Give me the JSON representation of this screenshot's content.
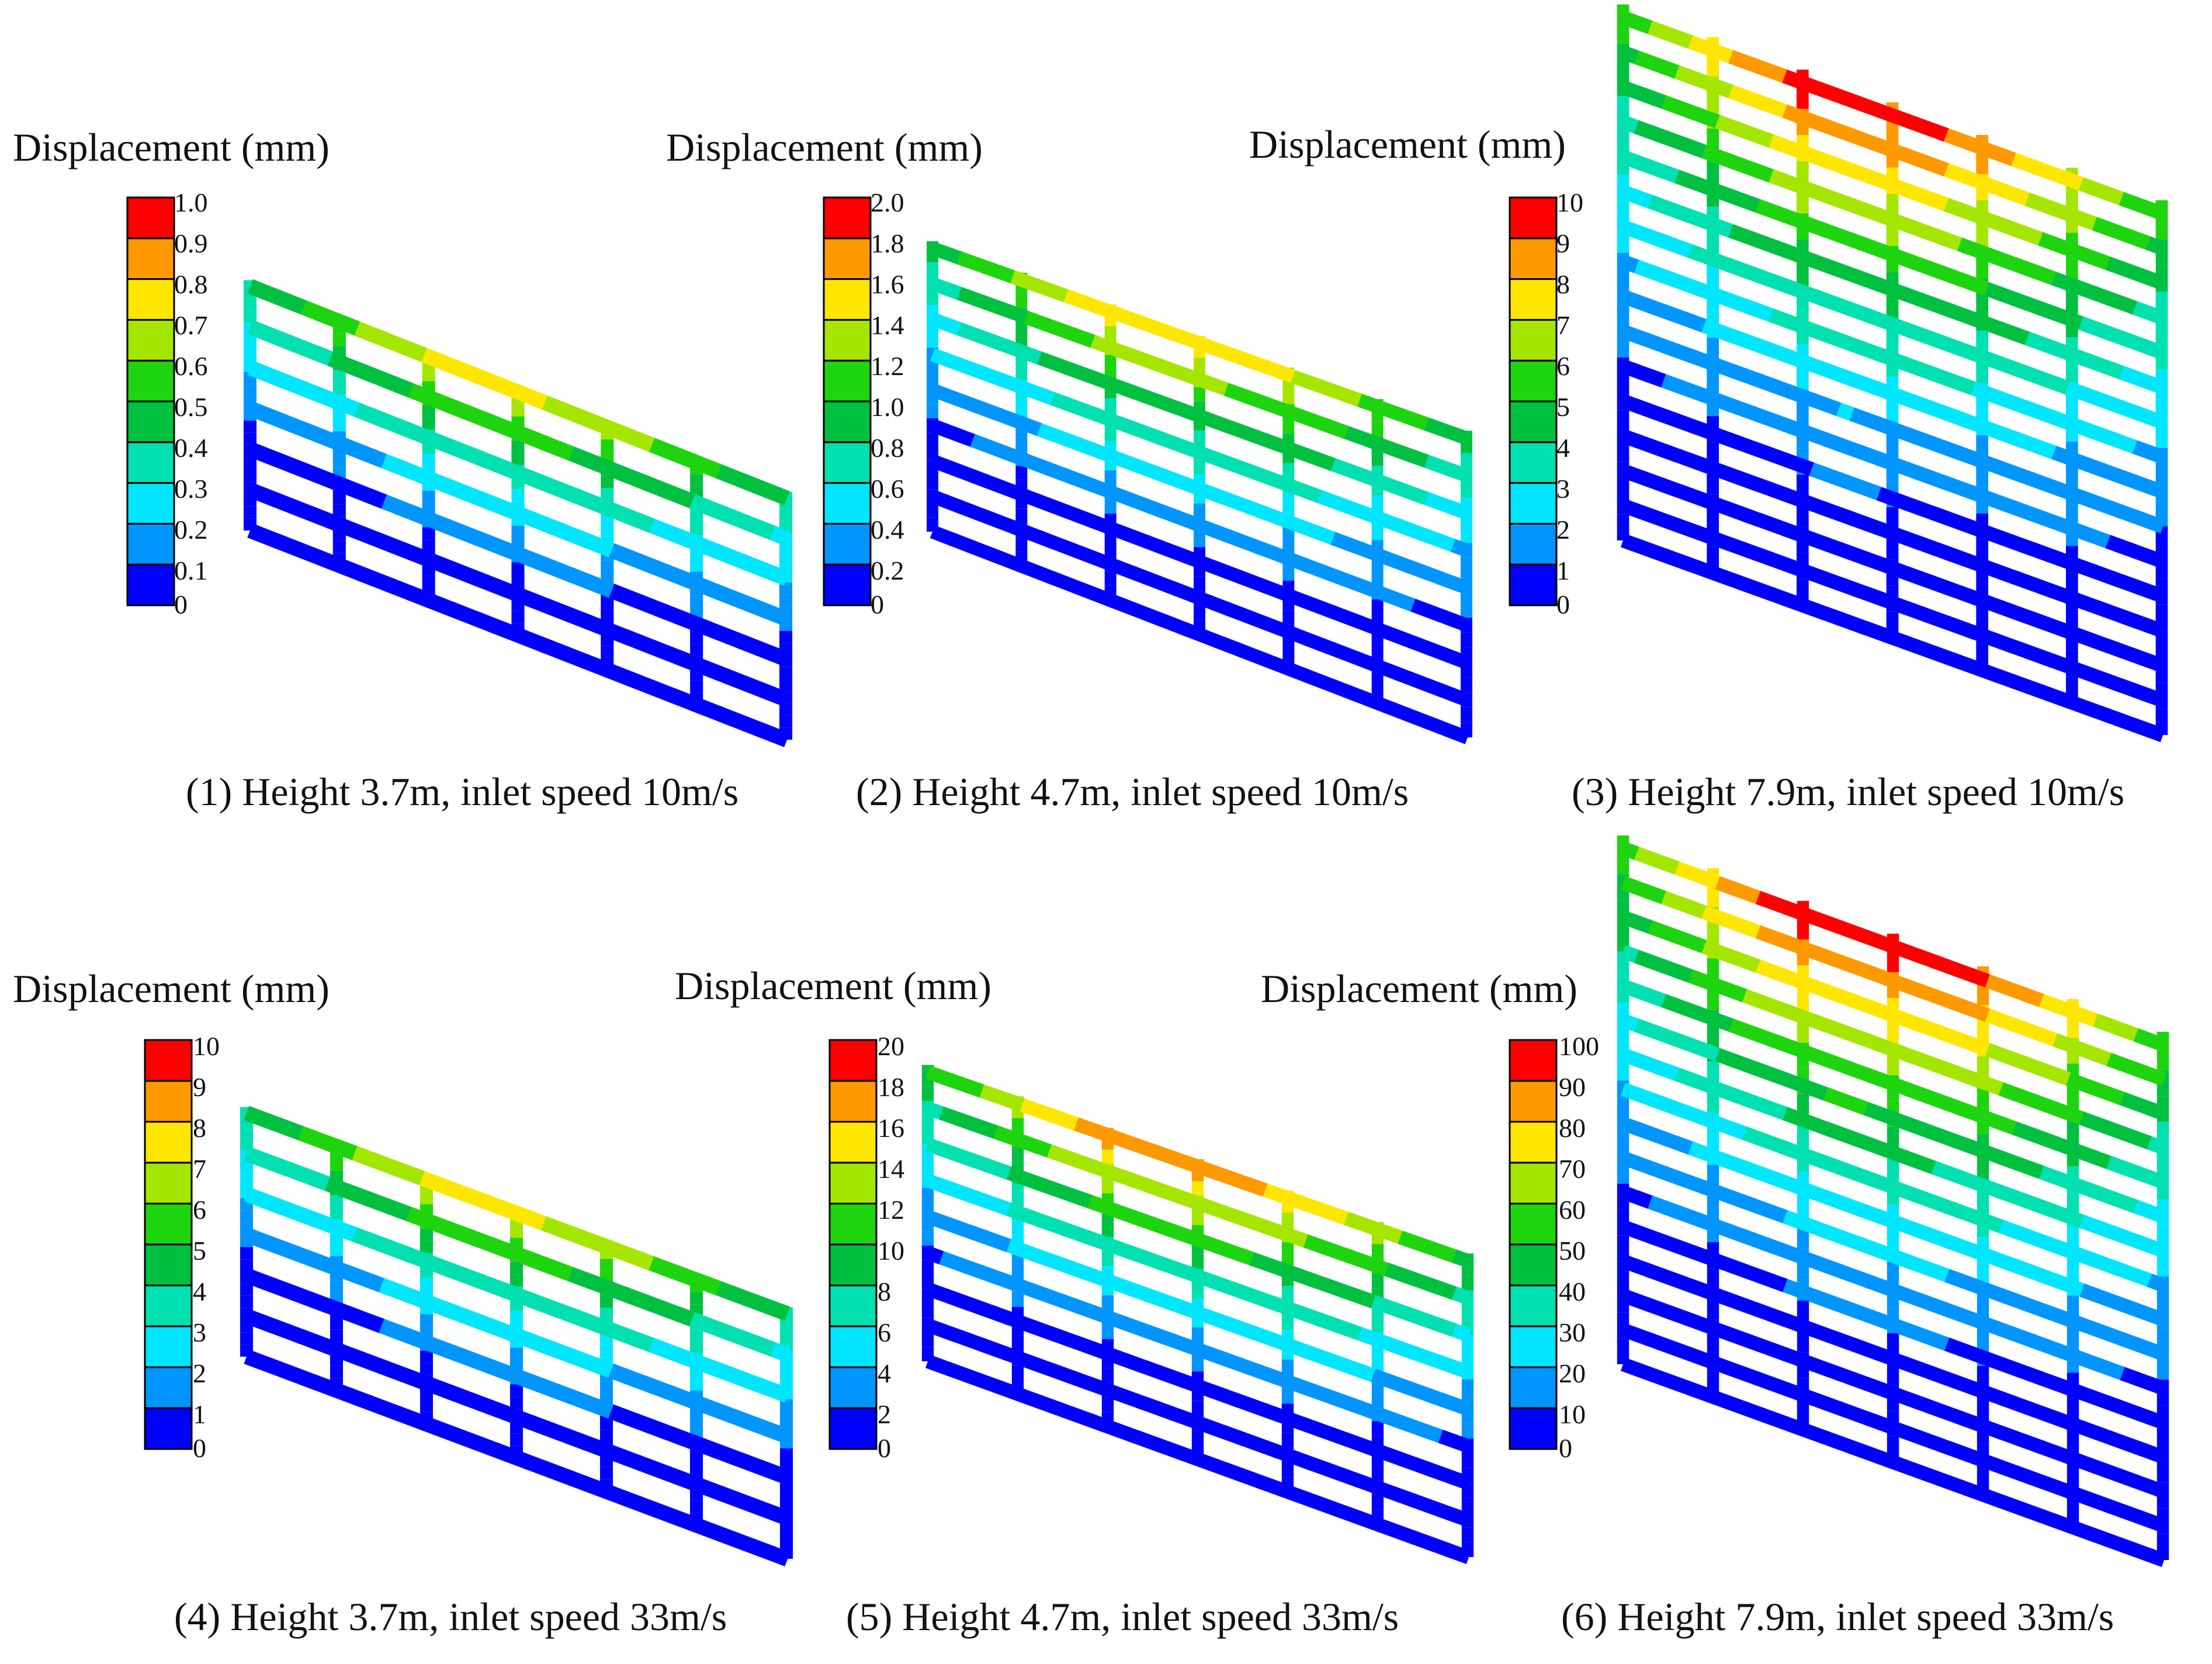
{
  "figure": {
    "colormap": [
      "#0000ff",
      "#0095ff",
      "#00e6ff",
      "#00e0b0",
      "#00c040",
      "#1ed40e",
      "#a4e600",
      "#ffe600",
      "#ff9900",
      "#ff0000"
    ],
    "frame_color": "#000000",
    "panels": [
      {
        "id": 1,
        "legend_title": "Displacement (mm)",
        "legend_ticks": [
          "0",
          "0.1",
          "0.2",
          "0.3",
          "0.4",
          "0.5",
          "0.6",
          "0.7",
          "0.8",
          "0.9",
          "1.0"
        ],
        "legend_max": 1.0,
        "caption": "(1) Height 3.7m, inlet speed 10m/s",
        "height_m": 3.7,
        "inlet_speed_ms": 10,
        "rails": 7,
        "posts": 7,
        "peak_fraction": 0.72
      },
      {
        "id": 2,
        "legend_title": "Displacement (mm)",
        "legend_ticks": [
          "0",
          "0.2",
          "0.4",
          "0.6",
          "0.8",
          "1.0",
          "1.2",
          "1.4",
          "1.6",
          "1.8",
          "2.0"
        ],
        "legend_max": 2.0,
        "caption": "(2) Height 4.7m, inlet speed 10m/s",
        "height_m": 4.7,
        "inlet_speed_ms": 10,
        "rails": 9,
        "posts": 7,
        "peak_fraction": 0.78
      },
      {
        "id": 3,
        "legend_title": "Displacement (mm)",
        "legend_ticks": [
          "0",
          "1",
          "2",
          "3",
          "4",
          "5",
          "6",
          "7",
          "8",
          "9",
          "10"
        ],
        "legend_max": 10,
        "caption": "(3) Height 7.9m, inlet speed 10m/s",
        "height_m": 7.9,
        "inlet_speed_ms": 10,
        "rails": 16,
        "posts": 7,
        "peak_fraction": 0.95
      },
      {
        "id": 4,
        "legend_title": "Displacement (mm)",
        "legend_ticks": [
          "0",
          "1",
          "2",
          "3",
          "4",
          "5",
          "6",
          "7",
          "8",
          "9",
          "10"
        ],
        "legend_max": 10,
        "caption": "(4) Height 3.7m, inlet speed 33m/s",
        "height_m": 3.7,
        "inlet_speed_ms": 33,
        "rails": 7,
        "posts": 7,
        "peak_fraction": 0.72
      },
      {
        "id": 5,
        "legend_title": "Displacement (mm)",
        "legend_ticks": [
          "0",
          "2",
          "4",
          "6",
          "8",
          "10",
          "12",
          "14",
          "16",
          "18",
          "20"
        ],
        "legend_max": 20,
        "caption": "(5) Height 4.7m, inlet speed 33m/s",
        "height_m": 4.7,
        "inlet_speed_ms": 33,
        "rails": 9,
        "posts": 7,
        "peak_fraction": 0.86
      },
      {
        "id": 6,
        "legend_title": "Displacement (mm)",
        "legend_ticks": [
          "0",
          "10",
          "20",
          "30",
          "40",
          "50",
          "60",
          "70",
          "80",
          "90",
          "100"
        ],
        "legend_max": 100,
        "caption": "(6) Height 7.9m, inlet speed 33m/s",
        "height_m": 7.9,
        "inlet_speed_ms": 33,
        "rails": 16,
        "posts": 7,
        "peak_fraction": 1.0
      }
    ]
  }
}
